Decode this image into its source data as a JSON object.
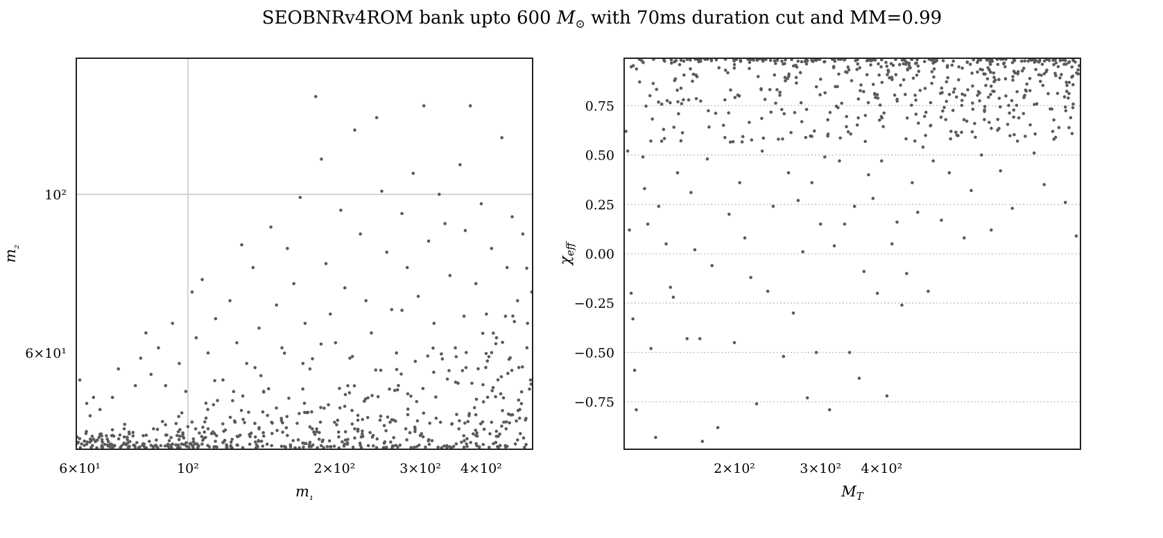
{
  "figure": {
    "title": "SEOBNRv4ROM bank upto 600 M⊙ with 70ms duration cut and MM=0.99",
    "title_parts": {
      "before": "SEOBNRv4ROM bank upto 600 ",
      "symbol": "M",
      "subscript": "⊙",
      "after": " with 70ms duration cut and MM=0.99"
    }
  },
  "chart_data": [
    {
      "type": "scatter",
      "title": "",
      "xlabel": "m₁",
      "ylabel": "m₂",
      "xscale": "log",
      "yscale": "log",
      "xlim": [
        59,
        510
      ],
      "ylim": [
        44,
        155
      ],
      "x_ticks": [
        {
          "value": 60,
          "label": "6×10¹"
        },
        {
          "value": 100,
          "label": "10²"
        },
        {
          "value": 200,
          "label": "2×10²"
        },
        {
          "value": 300,
          "label": "3×10²"
        },
        {
          "value": 400,
          "label": "4×10²"
        }
      ],
      "y_ticks": [
        {
          "value": 60,
          "label": "6×10¹"
        },
        {
          "value": 100,
          "label": "10²"
        }
      ],
      "grid": "major ticks only (solid light gray)",
      "marker_color": "#5a5a5a",
      "series": [
        {
          "points": [
            [
              60,
              55
            ],
            [
              62,
              51
            ],
            [
              63,
              49
            ],
            [
              64,
              52
            ],
            [
              66,
              50
            ],
            [
              70,
              52
            ],
            [
              72,
              57
            ],
            [
              74,
              47
            ],
            [
              78,
              54
            ],
            [
              80,
              59
            ],
            [
              82,
              64
            ],
            [
              84,
              56
            ],
            [
              87,
              61
            ],
            [
              90,
              54
            ],
            [
              93,
              66
            ],
            [
              96,
              58
            ],
            [
              99,
              53
            ],
            [
              102,
              73
            ],
            [
              104,
              63
            ],
            [
              107,
              76
            ],
            [
              110,
              60
            ],
            [
              114,
              67
            ],
            [
              118,
              55
            ],
            [
              122,
              71
            ],
            [
              126,
              62
            ],
            [
              129,
              85
            ],
            [
              132,
              58
            ],
            [
              136,
              79
            ],
            [
              140,
              65
            ],
            [
              143,
              53
            ],
            [
              148,
              90
            ],
            [
              152,
              70
            ],
            [
              156,
              61
            ],
            [
              160,
              84
            ],
            [
              165,
              75
            ],
            [
              170,
              99
            ],
            [
              174,
              66
            ],
            [
              178,
              57
            ],
            [
              183,
              137
            ],
            [
              188,
              112
            ],
            [
              192,
              80
            ],
            [
              196,
              68
            ],
            [
              201,
              62
            ],
            [
              206,
              95
            ],
            [
              210,
              74
            ],
            [
              215,
              59
            ],
            [
              220,
              123
            ],
            [
              226,
              88
            ],
            [
              232,
              71
            ],
            [
              238,
              64
            ],
            [
              244,
              128
            ],
            [
              250,
              101
            ],
            [
              256,
              83
            ],
            [
              262,
              69
            ],
            [
              268,
              60
            ],
            [
              275,
              94
            ],
            [
              282,
              79
            ],
            [
              290,
              107
            ],
            [
              297,
              72
            ],
            [
              305,
              133
            ],
            [
              312,
              86
            ],
            [
              320,
              66
            ],
            [
              328,
              100
            ],
            [
              337,
              91
            ],
            [
              345,
              77
            ],
            [
              354,
              61
            ],
            [
              362,
              110
            ],
            [
              371,
              89
            ],
            [
              380,
              133
            ],
            [
              390,
              75
            ],
            [
              400,
              97
            ],
            [
              410,
              68
            ],
            [
              420,
              84
            ],
            [
              430,
              63
            ],
            [
              441,
              120
            ],
            [
              452,
              79
            ],
            [
              463,
              93
            ],
            [
              475,
              71
            ],
            [
              487,
              88
            ],
            [
              498,
              66
            ],
            [
              508,
              73
            ],
            [
              70,
              46
            ],
            [
              85,
              47
            ],
            [
              95,
              46
            ],
            [
              110,
              47
            ],
            [
              125,
              48
            ],
            [
              140,
              47
            ],
            [
              160,
              46
            ],
            [
              180,
              47
            ],
            [
              200,
              48
            ],
            [
              220,
              47
            ],
            [
              240,
              46
            ],
            [
              260,
              48
            ],
            [
              280,
              47
            ],
            [
              300,
              46
            ],
            [
              330,
              48
            ],
            [
              360,
              47
            ],
            [
              390,
              46
            ],
            [
              420,
              48
            ],
            [
              450,
              47
            ],
            [
              480,
              50
            ],
            [
              505,
              55
            ]
          ]
        }
      ],
      "filler_points": {
        "count": 520,
        "description": "dense band of templates near the lower edge and toward high m₁"
      }
    },
    {
      "type": "scatter",
      "title": "",
      "xlabel": "M_T",
      "ylabel": "χ_eff",
      "xscale": "log",
      "yscale": "linear",
      "xlim": [
        119,
        1020
      ],
      "ylim": [
        -0.99,
        0.99
      ],
      "x_ticks": [
        {
          "value": 200,
          "label": "2×10²"
        },
        {
          "value": 300,
          "label": "3×10²"
        },
        {
          "value": 400,
          "label": "4×10²"
        }
      ],
      "y_ticks": [
        {
          "value": 0.75,
          "label": "0.75"
        },
        {
          "value": 0.5,
          "label": "0.50"
        },
        {
          "value": 0.25,
          "label": "0.25"
        },
        {
          "value": 0.0,
          "label": "0.00"
        },
        {
          "value": -0.25,
          "label": "−0.25"
        },
        {
          "value": -0.5,
          "label": "−0.50"
        },
        {
          "value": -0.75,
          "label": "−0.75"
        }
      ],
      "grid": "horizontal dotted lines at y ticks",
      "marker_color": "#5a5a5a",
      "series": [
        {
          "points": [
            [
              120,
              0.62
            ],
            [
              121,
              0.52
            ],
            [
              122,
              0.12
            ],
            [
              123,
              -0.2
            ],
            [
              124,
              -0.33
            ],
            [
              125,
              -0.59
            ],
            [
              126,
              -0.79
            ],
            [
              128,
              0.87
            ],
            [
              130,
              0.49
            ],
            [
              131,
              0.33
            ],
            [
              133,
              0.15
            ],
            [
              135,
              -0.48
            ],
            [
              138,
              -0.93
            ],
            [
              140,
              0.24
            ],
            [
              142,
              0.57
            ],
            [
              145,
              0.05
            ],
            [
              148,
              -0.17
            ],
            [
              150,
              -0.22
            ],
            [
              153,
              0.41
            ],
            [
              156,
              0.76
            ],
            [
              160,
              -0.43
            ],
            [
              163,
              0.31
            ],
            [
              166,
              0.02
            ],
            [
              170,
              -0.43
            ],
            [
              172,
              -0.95
            ],
            [
              176,
              0.48
            ],
            [
              180,
              -0.06
            ],
            [
              185,
              -0.88
            ],
            [
              190,
              0.65
            ],
            [
              195,
              0.2
            ],
            [
              200,
              -0.45
            ],
            [
              205,
              0.36
            ],
            [
              210,
              0.08
            ],
            [
              216,
              -0.12
            ],
            [
              222,
              -0.76
            ],
            [
              228,
              0.52
            ],
            [
              234,
              -0.19
            ],
            [
              240,
              0.24
            ],
            [
              246,
              0.58
            ],
            [
              252,
              -0.52
            ],
            [
              258,
              0.41
            ],
            [
              264,
              -0.3
            ],
            [
              270,
              0.27
            ],
            [
              276,
              0.01
            ],
            [
              282,
              -0.73
            ],
            [
              288,
              0.36
            ],
            [
              294,
              -0.5
            ],
            [
              300,
              0.15
            ],
            [
              306,
              0.49
            ],
            [
              313,
              -0.79
            ],
            [
              320,
              0.04
            ],
            [
              328,
              0.47
            ],
            [
              336,
              0.15
            ],
            [
              344,
              -0.5
            ],
            [
              352,
              0.24
            ],
            [
              360,
              -0.63
            ],
            [
              368,
              -0.09
            ],
            [
              376,
              0.4
            ],
            [
              384,
              0.28
            ],
            [
              392,
              -0.2
            ],
            [
              400,
              0.47
            ],
            [
              410,
              -0.72
            ],
            [
              420,
              0.05
            ],
            [
              430,
              0.16
            ],
            [
              440,
              -0.26
            ],
            [
              450,
              -0.1
            ],
            [
              462,
              0.36
            ],
            [
              474,
              0.21
            ],
            [
              486,
              0.54
            ],
            [
              498,
              -0.19
            ],
            [
              510,
              0.47
            ],
            [
              530,
              0.17
            ],
            [
              550,
              0.41
            ],
            [
              570,
              0.6
            ],
            [
              590,
              0.08
            ],
            [
              610,
              0.32
            ],
            [
              640,
              0.5
            ],
            [
              670,
              0.12
            ],
            [
              700,
              0.42
            ],
            [
              740,
              0.23
            ],
            [
              780,
              0.71
            ],
            [
              820,
              0.51
            ],
            [
              860,
              0.35
            ],
            [
              900,
              0.58
            ],
            [
              950,
              0.26
            ],
            [
              1000,
              0.09
            ]
          ]
        }
      ],
      "filler_points": {
        "count": 520,
        "description": "dense band of templates near χ_eff ≈ 1"
      }
    }
  ]
}
